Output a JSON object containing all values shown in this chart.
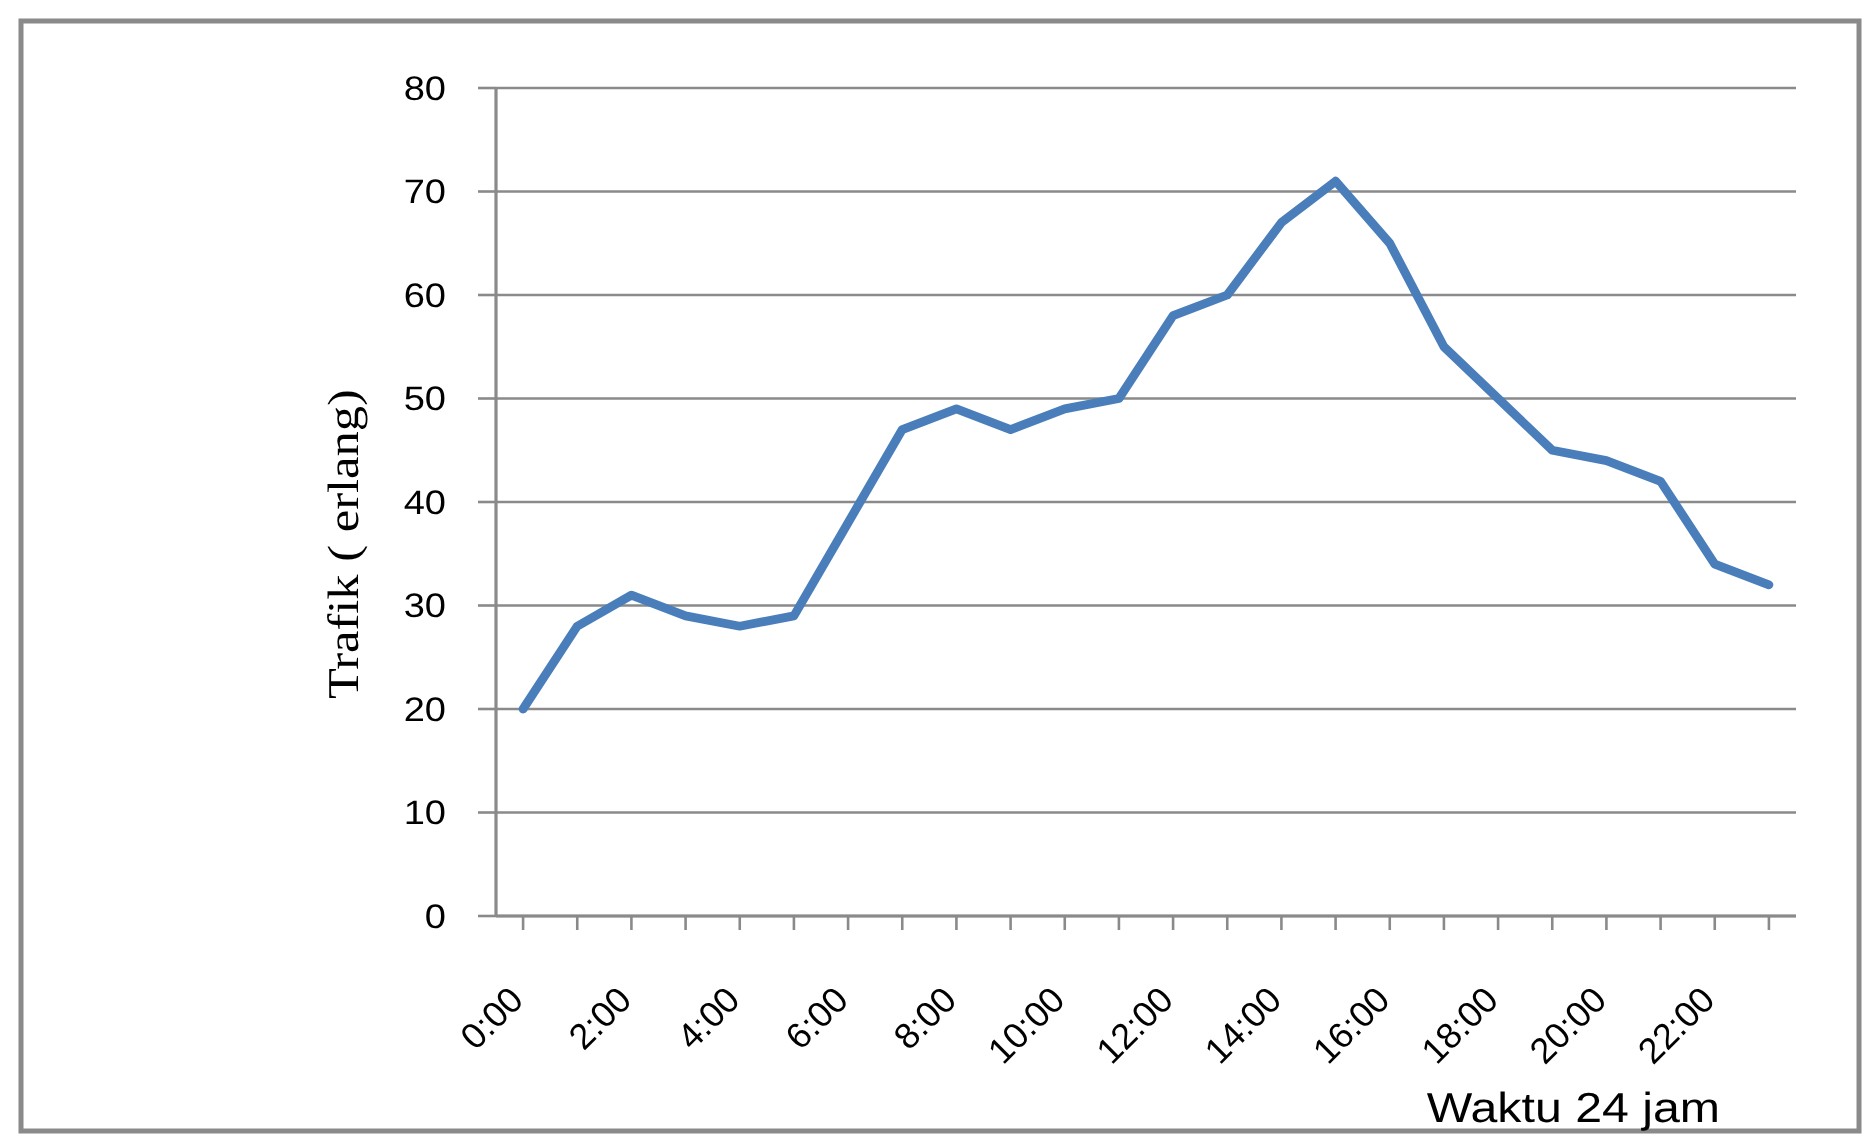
{
  "chart_data": {
    "type": "line",
    "xlabel": "Waktu 24 jam",
    "ylabel": "Trafik ( erlang)",
    "categories": [
      "0:00",
      null,
      "2:00",
      null,
      "4:00",
      null,
      "6:00",
      null,
      "8:00",
      null,
      "10:00",
      null,
      "12:00",
      null,
      "14:00",
      null,
      "16:00",
      null,
      "18:00",
      null,
      "20:00",
      null,
      "22:00",
      null
    ],
    "series": [
      {
        "color": "#4a7ebb",
        "values": [
          20,
          28,
          31,
          29,
          28,
          29,
          38,
          47,
          49,
          47,
          49,
          50,
          58,
          60,
          67,
          71,
          65,
          55,
          50,
          45,
          44,
          42,
          34,
          32
        ]
      }
    ],
    "ylim": [
      0,
      80
    ],
    "yticks": [
      0,
      10,
      20,
      30,
      40,
      50,
      60,
      70,
      80
    ],
    "grid": "y"
  }
}
